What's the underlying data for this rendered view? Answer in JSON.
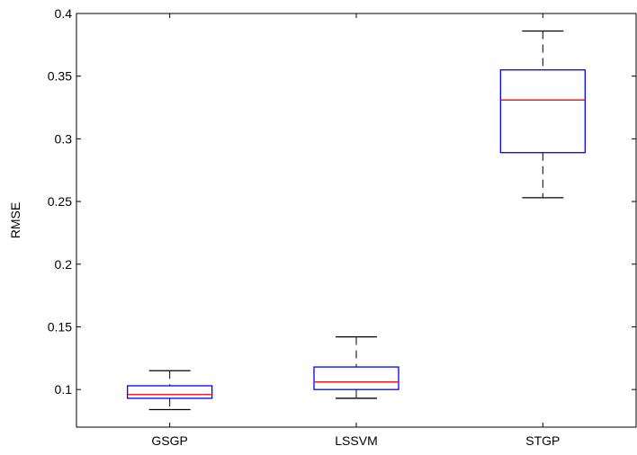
{
  "chart_data": {
    "type": "box",
    "title": "",
    "xlabel": "",
    "ylabel": "RMSE",
    "ylim": [
      0.07,
      0.4
    ],
    "yticks": [
      0.1,
      0.15,
      0.2,
      0.25,
      0.3,
      0.35,
      0.4
    ],
    "ytick_labels": [
      "0.1",
      "0.15",
      "0.2",
      "0.25",
      "0.3",
      "0.35",
      "0.4"
    ],
    "grid": false,
    "categories": [
      "GSGP",
      "LSSVM",
      "STGP"
    ],
    "boxes": [
      {
        "category": "GSGP",
        "whisker_low": 0.084,
        "q1": 0.093,
        "median": 0.096,
        "q3": 0.103,
        "whisker_high": 0.115
      },
      {
        "category": "LSSVM",
        "whisker_low": 0.093,
        "q1": 0.1,
        "median": 0.106,
        "q3": 0.118,
        "whisker_high": 0.142
      },
      {
        "category": "STGP",
        "whisker_low": 0.253,
        "q1": 0.289,
        "median": 0.331,
        "q3": 0.355,
        "whisker_high": 0.386
      }
    ],
    "colors": {
      "box": "#0000ff",
      "median": "#ff0000",
      "whisker": "#000000"
    }
  }
}
